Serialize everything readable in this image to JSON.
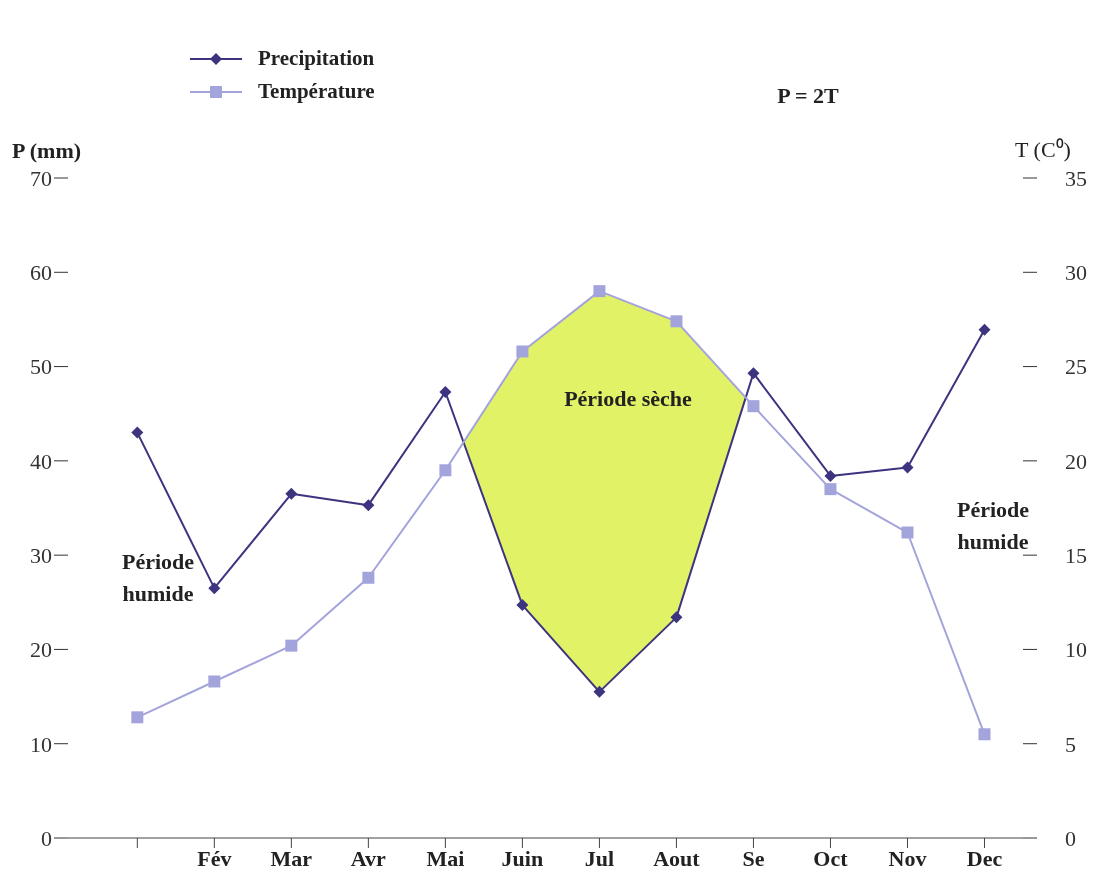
{
  "chart_data": {
    "type": "line",
    "ylabel": "P (mm)",
    "y2label": "T (C⁰)",
    "categories": [
      null,
      "Fév",
      "Mar",
      "Avr",
      "Mai",
      "Juin",
      "Jul",
      "Aout",
      "Se",
      "Oct",
      "Nov",
      "Dec"
    ],
    "series": [
      {
        "name": "Precipitation",
        "color": "#3d3480",
        "marker": "diamond",
        "values": [
          43,
          26.5,
          36.5,
          35.3,
          47.3,
          24.7,
          15.5,
          23.4,
          49.3,
          38.4,
          39.3,
          53.9
        ]
      },
      {
        "name": "Température",
        "color": "#a4a4dc",
        "marker": "square",
        "axis": "y2",
        "values": [
          6.4,
          8.3,
          10.2,
          13.8,
          19.5,
          25.8,
          29,
          27.4,
          22.9,
          18.5,
          16.2,
          5.5
        ]
      }
    ],
    "ylim": [
      0,
      70
    ],
    "yticks": [
      0,
      10,
      20,
      30,
      40,
      50,
      60,
      70
    ],
    "y2lim": [
      0,
      35
    ],
    "y2ticks": [
      0,
      5,
      10,
      15,
      20,
      25,
      30,
      35
    ],
    "annotations": [
      "P = 2T",
      "Période humide",
      "Période humide",
      "Période sèche"
    ],
    "legend": "top left",
    "grid": false
  }
}
